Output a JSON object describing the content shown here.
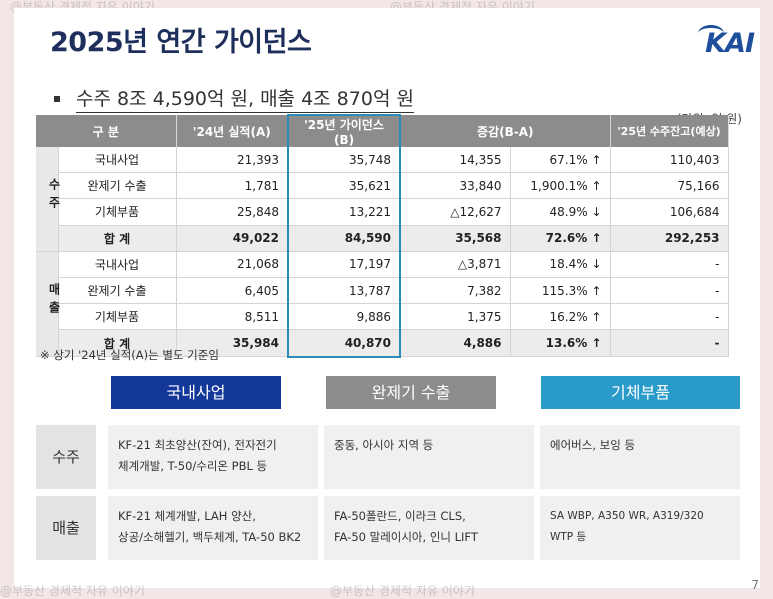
{
  "watermark": "@부동산 경제적 자유 이야기",
  "title": "2025년 연간 가이던스",
  "logo": "KAI",
  "subtitle": "수주 8조 4,590억 원, 매출 4조 870억 원",
  "unit": "(단위: 억 원)",
  "table": {
    "headers": [
      "구 분",
      "'24년 실적(A)",
      "'25년 가이던스(B)",
      "증감(B-A)",
      "'25년 수주잔고(예상)"
    ],
    "groups": [
      {
        "label": "수주",
        "rows": [
          {
            "name": "국내사업",
            "a": "21,393",
            "b": "35,748",
            "diff": "14,355",
            "pct": "67.1%",
            "arrow": "↑",
            "backlog": "110,403"
          },
          {
            "name": "완제기 수출",
            "a": "1,781",
            "b": "35,621",
            "diff": "33,840",
            "pct": "1,900.1%",
            "arrow": "↑",
            "backlog": "75,166"
          },
          {
            "name": "기체부품",
            "a": "25,848",
            "b": "13,221",
            "diff": "△12,627",
            "pct": "48.9%",
            "arrow": "↓",
            "backlog": "106,684"
          }
        ],
        "total": {
          "name": "합 계",
          "a": "49,022",
          "b": "84,590",
          "diff": "35,568",
          "pct": "72.6%",
          "arrow": "↑",
          "backlog": "292,253"
        }
      },
      {
        "label": "매출",
        "rows": [
          {
            "name": "국내사업",
            "a": "21,068",
            "b": "17,197",
            "diff": "△3,871",
            "pct": "18.4%",
            "arrow": "↓",
            "backlog": "-"
          },
          {
            "name": "완제기 수출",
            "a": "6,405",
            "b": "13,787",
            "diff": "7,382",
            "pct": "115.3%",
            "arrow": "↑",
            "backlog": "-"
          },
          {
            "name": "기체부품",
            "a": "8,511",
            "b": "9,886",
            "diff": "1,375",
            "pct": "16.2%",
            "arrow": "↑",
            "backlog": "-"
          }
        ],
        "total": {
          "name": "합 계",
          "a": "35,984",
          "b": "40,870",
          "diff": "4,886",
          "pct": "13.6%",
          "arrow": "↑",
          "backlog": "-"
        }
      }
    ]
  },
  "note": "※ 상기 '24년 실적(A)는 별도 기준임",
  "categories": [
    {
      "label": "국내사업",
      "color": "#13389a"
    },
    {
      "label": "완제기 수출",
      "color": "#8c8c8c"
    },
    {
      "label": "기체부품",
      "color": "#2a9bc8"
    }
  ],
  "detail": {
    "order_label": "수주",
    "sales_label": "매출",
    "order": [
      "KF-21 최초양산(잔여), 전자전기\n체계개발, T-50/수리온 PBL 등",
      "중동, 아시아 지역 등",
      "에어버스, 보잉 등"
    ],
    "sales": [
      "KF-21 체계개발, LAH 양산,\n상공/소해헬기, 백두체계, TA-50 BK2",
      "FA-50폴란드, 이라크 CLS,\nFA-50 말레이시아, 인니 LIFT",
      "SA WBP, A350 WR, A319/320 WTP 등"
    ]
  },
  "page_number": "7"
}
